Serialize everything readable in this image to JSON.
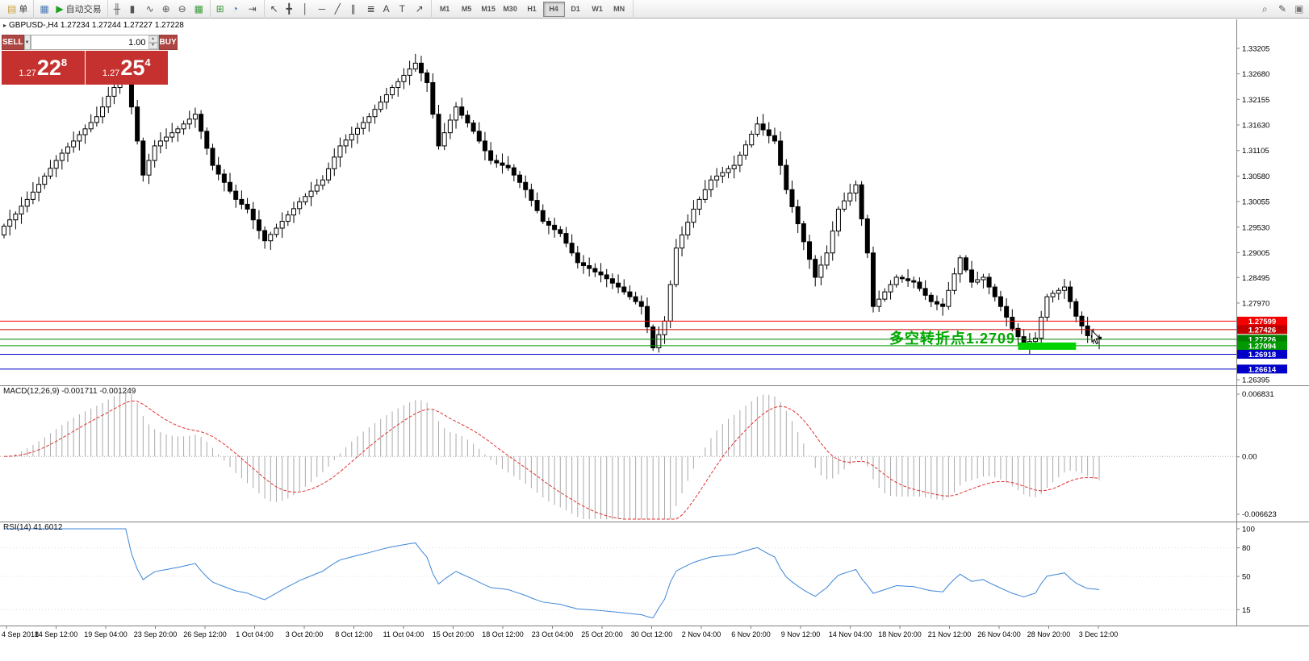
{
  "toolbar": {
    "groups": [
      {
        "name": "file-group",
        "items": [
          {
            "name": "new-order-button",
            "glyph": "▤",
            "glyph_color": "#c9a03a",
            "label": "单"
          }
        ]
      },
      {
        "name": "chart-group",
        "items": [
          {
            "name": "charts-grid-icon",
            "glyph": "▦",
            "glyph_color": "#4a7ab5"
          },
          {
            "name": "autotrade-button",
            "glyph": "▶",
            "glyph_color": "#1ba11b",
            "label": "自动交易"
          }
        ]
      },
      {
        "name": "view-group",
        "items": [
          {
            "name": "bar-chart-mode-icon",
            "glyph": "╫",
            "glyph_color": "#555555"
          },
          {
            "name": "candlestick-mode-icon",
            "glyph": "▮",
            "glyph_color": "#555555"
          },
          {
            "name": "line-chart-mode-icon",
            "glyph": "∿",
            "glyph_color": "#555555"
          },
          {
            "name": "zoom-in-icon",
            "glyph": "⊕",
            "glyph_color": "#555555"
          },
          {
            "name": "zoom-out-icon",
            "glyph": "⊖",
            "glyph_color": "#555555"
          },
          {
            "name": "tile-windows-icon",
            "glyph": "▦",
            "glyph_color": "#3c9a3c"
          }
        ]
      },
      {
        "name": "window-group",
        "items": [
          {
            "name": "new-chart-icon",
            "glyph": "⊞",
            "glyph_color": "#3c9a3c"
          },
          {
            "name": "clock-icon",
            "glyph": "◔",
            "glyph_color": "#3a6ab0"
          },
          {
            "name": "chart-shift-icon",
            "glyph": "⇥",
            "glyph_color": "#555555"
          }
        ]
      },
      {
        "name": "tools-group",
        "items": [
          {
            "name": "cursor-tool",
            "glyph": "↖",
            "glyph_color": "#444444"
          },
          {
            "name": "crosshair-tool",
            "glyph": "╋",
            "glyph_color": "#444444"
          },
          {
            "name": "vertical-line-tool",
            "glyph": "│",
            "glyph_color": "#444444"
          },
          {
            "name": "horizontal-line-tool",
            "glyph": "─",
            "glyph_color": "#444444"
          },
          {
            "name": "trendline-tool",
            "glyph": "╱",
            "glyph_color": "#444444"
          },
          {
            "name": "channel-tool",
            "glyph": "∥",
            "glyph_color": "#444444"
          },
          {
            "name": "fibonacci-tool",
            "glyph": "≣",
            "glyph_color": "#444444"
          },
          {
            "name": "text-tool",
            "glyph": "A",
            "glyph_color": "#444444"
          },
          {
            "name": "label-tool",
            "glyph": "T",
            "glyph_color": "#444444"
          },
          {
            "name": "arrow-tool",
            "glyph": "↗",
            "glyph_color": "#444444"
          }
        ]
      }
    ],
    "timeframes": [
      "M1",
      "M5",
      "M15",
      "M30",
      "H1",
      "H4",
      "D1",
      "W1",
      "MN"
    ],
    "active_timeframe": "H4",
    "right_items": [
      {
        "name": "search-icon",
        "glyph": "⌕",
        "glyph_color": "#555555"
      },
      {
        "name": "edit-icon",
        "glyph": "✎",
        "glyph_color": "#555555"
      },
      {
        "name": "panel-icon",
        "glyph": "▣",
        "glyph_color": "#777777"
      }
    ]
  },
  "one_click": {
    "sell_label": "SELL",
    "buy_label": "BUY",
    "volume": "1.00",
    "sell_price": {
      "prefix": "1.27",
      "big": "22",
      "sup": "8"
    },
    "buy_price": {
      "prefix": "1.27",
      "big": "25",
      "sup": "4"
    }
  },
  "icons": {
    "dropdown": "▼",
    "spin_up": "▲",
    "spin_down": "▼",
    "symbol_marker": "▸"
  },
  "annotation": {
    "text": "多空转折点1.2709",
    "color": "#00a800",
    "highlight": {
      "bar_start": 175,
      "bar_end": 185,
      "price_top": 1.2716,
      "price_bottom": 1.2701,
      "color": "#00d300"
    }
  },
  "chart_data": [
    {
      "type": "candlestick",
      "symbol": "GBPUSD-",
      "timeframe": "H4",
      "header": "GBPUSD-,H4  1.27234 1.27244 1.27227 1.27228",
      "price_range": {
        "top": 1.338,
        "bottom": 1.2628
      },
      "price_axis_ticks": [
        "1.33205",
        "1.32680",
        "1.32155",
        "1.31630",
        "1.31105",
        "1.30580",
        "1.30055",
        "1.29530",
        "1.29005",
        "1.28495",
        "1.27970",
        "1.26395"
      ],
      "levels": [
        {
          "price": 1.27599,
          "color": "#f40000",
          "label": "1.27599"
        },
        {
          "price": 1.27426,
          "color": "#c00000",
          "label": "1.27426"
        },
        {
          "price": 1.27226,
          "color": "#008000",
          "label": "1.27226"
        },
        {
          "price": 1.27094,
          "color": "#009a00",
          "label": "1.27094"
        },
        {
          "price": 1.26918,
          "color": "#0000c8",
          "label": "1.26918"
        },
        {
          "price": 1.26614,
          "color": "#0000c8",
          "label": "1.26614"
        }
      ],
      "closes": [
        1.2955,
        1.2968,
        1.298,
        1.2996,
        1.301,
        1.3025,
        1.3041,
        1.3058,
        1.3074,
        1.309,
        1.3105,
        1.3118,
        1.313,
        1.3143,
        1.3155,
        1.3168,
        1.318,
        1.32,
        1.3222,
        1.324,
        1.3258,
        1.327,
        1.32,
        1.313,
        1.306,
        1.309,
        1.312,
        1.313,
        1.3138,
        1.3147,
        1.3155,
        1.3165,
        1.3175,
        1.3185,
        1.315,
        1.3115,
        1.308,
        1.3062,
        1.3045,
        1.3027,
        1.301,
        1.3,
        1.299,
        1.2968,
        1.2946,
        1.2925,
        1.2938,
        1.2951,
        1.2965,
        1.2978,
        1.2991,
        1.3005,
        1.3016,
        1.3027,
        1.3039,
        1.305,
        1.3073,
        1.3097,
        1.312,
        1.3132,
        1.3144,
        1.3156,
        1.3168,
        1.318,
        1.3195,
        1.321,
        1.3225,
        1.324,
        1.3252,
        1.3265,
        1.3278,
        1.329,
        1.327,
        1.325,
        1.3185,
        1.312,
        1.3147,
        1.3173,
        1.32,
        1.3183,
        1.3167,
        1.315,
        1.313,
        1.311,
        1.309,
        1.3085,
        1.308,
        1.3075,
        1.306,
        1.3045,
        1.303,
        1.3008,
        1.2987,
        1.2965,
        1.2957,
        1.2948,
        1.294,
        1.292,
        1.29,
        1.288,
        1.2874,
        1.2868,
        1.2861,
        1.2855,
        1.2847,
        1.2838,
        1.283,
        1.282,
        1.281,
        1.28,
        1.279,
        1.2748,
        1.2705,
        1.2732,
        1.276,
        1.2835,
        1.291,
        1.2937,
        1.2963,
        1.299,
        1.301,
        1.303,
        1.305,
        1.3058,
        1.3065,
        1.3073,
        1.308,
        1.3101,
        1.3122,
        1.3144,
        1.3165,
        1.3153,
        1.3141,
        1.313,
        1.308,
        1.303,
        1.2995,
        1.296,
        1.2923,
        1.2887,
        1.285,
        1.2875,
        1.29,
        1.2945,
        1.299,
        1.3007,
        1.3023,
        1.304,
        1.297,
        1.29,
        1.279,
        1.2805,
        1.282,
        1.2835,
        1.285,
        1.2847,
        1.2843,
        1.284,
        1.2827,
        1.2813,
        1.28,
        1.2795,
        1.279,
        1.2823,
        1.2857,
        1.289,
        1.2865,
        1.284,
        1.2845,
        1.285,
        1.283,
        1.281,
        1.279,
        1.2768,
        1.2745,
        1.2728,
        1.271,
        1.2718,
        1.2725,
        1.2768,
        1.281,
        1.2817,
        1.2823,
        1.283,
        1.28,
        1.277,
        1.275,
        1.273,
        1.2727,
        1.27228
      ],
      "time_labels": [
        "4 Sep 2018",
        "14 Sep 12:00",
        "19 Sep 04:00",
        "23 Sep 20:00",
        "26 Sep 12:00",
        "1 Oct 04:00",
        "3 Oct 20:00",
        "8 Oct 12:00",
        "11 Oct 04:00",
        "15 Oct 20:00",
        "18 Oct 12:00",
        "23 Oct 04:00",
        "25 Oct 20:00",
        "30 Oct 12:00",
        "2 Nov 04:00",
        "6 Nov 20:00",
        "9 Nov 12:00",
        "14 Nov 04:00",
        "18 Nov 20:00",
        "21 Nov 12:00",
        "26 Nov 04:00",
        "28 Nov 20:00",
        "3 Dec 12:00"
      ]
    },
    {
      "type": "macd",
      "label_full": "MACD(12,26,9) -0.001711 -0.001249",
      "params": [
        12,
        26,
        9
      ],
      "values_display": [
        "-0.001711",
        "-0.001249"
      ],
      "axis": [
        "0.006831",
        "0.00",
        "-0.006623"
      ],
      "range": {
        "top": 0.006831,
        "bottom": -0.006623
      },
      "histogram_color": "#a9a9a9",
      "signal_color": "#e03232"
    },
    {
      "type": "rsi",
      "label_full": "RSI(14) 41.6012",
      "period": 14,
      "value_display": "41.6012",
      "axis_ticks": [
        100,
        80,
        50,
        15
      ],
      "line_color": "#3e86d8"
    }
  ]
}
